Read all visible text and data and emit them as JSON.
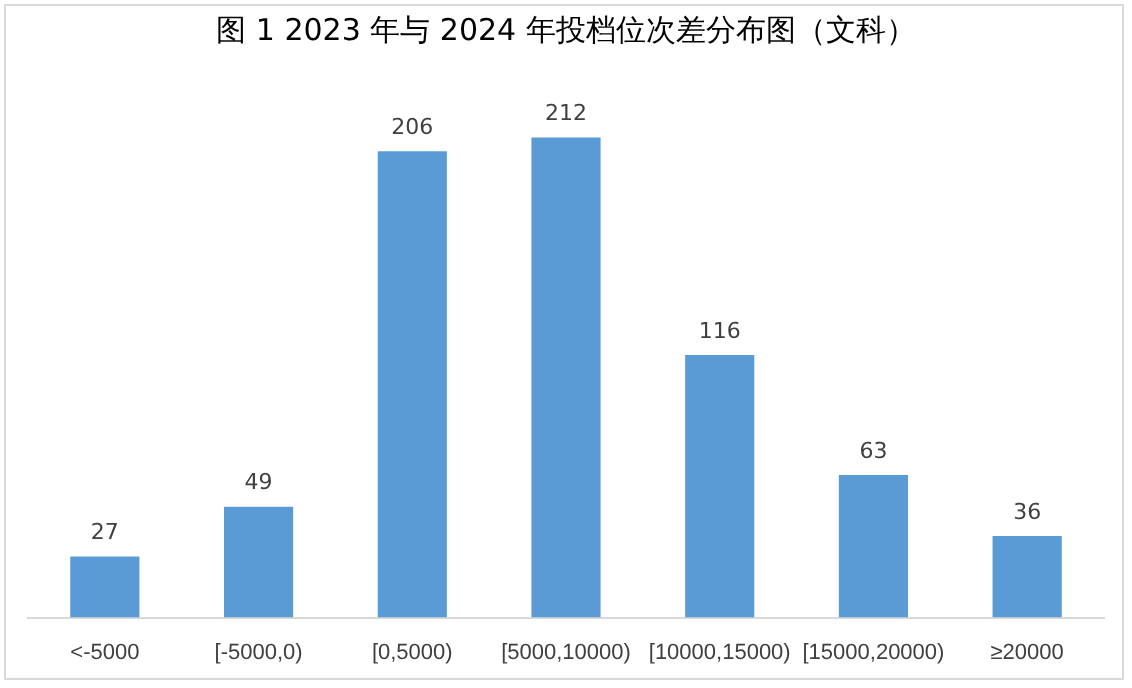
{
  "chart_data": {
    "type": "bar",
    "title": "图 1 2023 年与 2024 年投档位次差分布图（文科）",
    "categories": [
      "<-5000",
      "[-5000,0)",
      "[0,5000)",
      "[5000,10000)",
      "[10000,15000)",
      "[15000,20000)",
      "≥20000"
    ],
    "values": [
      27,
      49,
      206,
      212,
      116,
      63,
      36
    ],
    "color": "#5b9bd5",
    "data_labels": true,
    "grid": false,
    "legend": false,
    "tick_labels": "x"
  }
}
